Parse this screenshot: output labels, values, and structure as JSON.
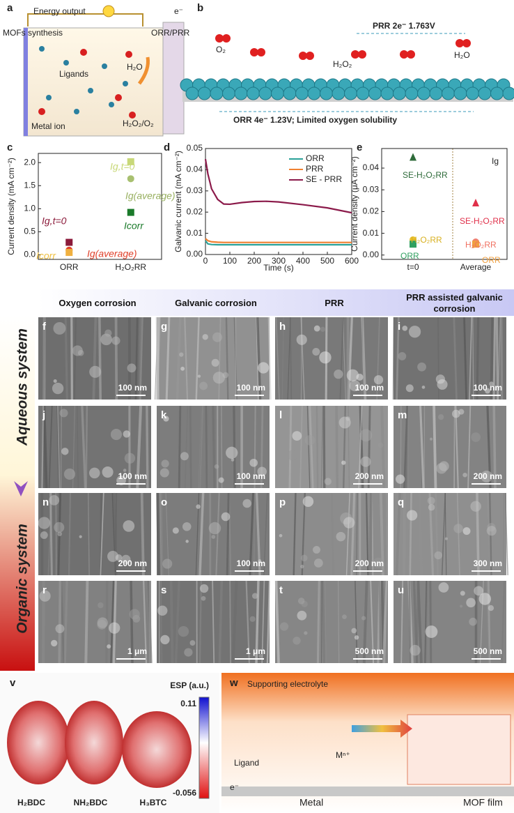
{
  "panel_a": {
    "letter": "a",
    "energy_output": "Energy output",
    "electron": "e⁻",
    "mofs_synthesis": "MOFs synthesis",
    "orr_prr": "ORR/PRR",
    "ligands": "Ligands",
    "water": "H₂O",
    "metal_ion": "Metal ion",
    "products": "H₂O₂/O₂"
  },
  "panel_b": {
    "letter": "b",
    "prr": "PRR  2e⁻ 1.763V",
    "o2": "O₂",
    "h2o2": "H₂O₂",
    "h2o": "H₂O",
    "orr": "ORR  4e⁻ 1.23V; Limited oxygen solubility"
  },
  "chart_data": [
    {
      "type": "scatter",
      "label": "c",
      "ylabel": "Current density (mA cm⁻²)",
      "categories": [
        "ORR",
        "H₂O₂RR"
      ],
      "ylim": [
        -0.1,
        2.2
      ],
      "yticks": [
        {
          "value": 0,
          "label": "0.0"
        },
        0.5,
        {
          "value": 1,
          "label": "1.0"
        },
        1.5,
        {
          "value": 2,
          "label": "2.0"
        }
      ],
      "series": [
        {
          "marker": "square",
          "colors": [
            "#8b1a3a",
            "#c8d878"
          ],
          "values": [
            0.27,
            2.02
          ]
        },
        {
          "marker": "circle",
          "colors": [
            "#e0402a",
            "#a8c070"
          ],
          "values": [
            0.1,
            1.65
          ]
        },
        {
          "marker": "square",
          "colors": [
            "#f0b040",
            "#1a7a2a"
          ],
          "values": [
            0.05,
            0.92
          ]
        }
      ],
      "annotations": [
        {
          "text": "Ig,t=0",
          "color": "#8b1a3a"
        },
        {
          "text": "Ig(average)",
          "color": "#e0402a"
        },
        {
          "text": "Icorr",
          "color": "#f0c040"
        },
        {
          "text": "Ig,t=0",
          "color": "#c8d878"
        },
        {
          "text": "Ig(average)",
          "color": "#98b060"
        },
        {
          "text": "Icorr",
          "color": "#1a7a2a"
        }
      ]
    },
    {
      "type": "line",
      "label": "d",
      "ylabel": "Galvanic current (mA cm⁻²)",
      "xlabel": "Time (s)",
      "xlim": [
        0,
        600
      ],
      "xticks": [
        0,
        100,
        200,
        300,
        400,
        500,
        600
      ],
      "ylim": [
        0,
        0.05
      ],
      "yticks": [
        {
          "value": 0,
          "label": "0.00"
        },
        0.01,
        0.02,
        0.03,
        0.04,
        0.05
      ],
      "x": [
        0,
        10,
        25,
        50,
        75,
        100,
        150,
        200,
        250,
        300,
        400,
        500,
        600
      ],
      "series": [
        {
          "name": "ORR",
          "color": "#2aa198",
          "values": [
            0.0065,
            0.005,
            0.0047,
            0.0046,
            0.0046,
            0.0046,
            0.0046,
            0.0046,
            0.0046,
            0.0046,
            0.0046,
            0.0046,
            0.0046
          ]
        },
        {
          "name": "PRR",
          "color": "#f08030",
          "values": [
            0.0075,
            0.0065,
            0.006,
            0.0058,
            0.0057,
            0.0057,
            0.0057,
            0.0057,
            0.0057,
            0.0057,
            0.0057,
            0.0057,
            0.0057
          ]
        },
        {
          "name": "SE - PRR",
          "color": "#8b1a4a",
          "values": [
            0.045,
            0.038,
            0.031,
            0.026,
            0.0238,
            0.0237,
            0.0245,
            0.025,
            0.0251,
            0.0248,
            0.0235,
            0.022,
            0.0197
          ]
        }
      ]
    },
    {
      "type": "scatter",
      "label": "e",
      "ylabel": "Current density (μA cm⁻²)",
      "categories": [
        "t=0",
        "Average"
      ],
      "ylim": [
        -0.002,
        0.049
      ],
      "yticks": [
        {
          "value": 0,
          "label": "0.00"
        },
        0.01,
        0.02,
        0.03,
        0.04
      ],
      "series": [
        {
          "marker": "triangle",
          "colors": [
            "#2e6b3a",
            "#e0304a"
          ],
          "values": [
            0.045,
            0.024
          ]
        },
        {
          "marker": "circle",
          "colors": [
            "#e8c030",
            "#f08070"
          ],
          "values": [
            0.007,
            0.006
          ]
        },
        {
          "marker": "square",
          "colors": [
            "#30a060",
            "#f0a040"
          ],
          "values": [
            0.005,
            0.005
          ]
        }
      ],
      "annotations": [
        {
          "text": "SE-H₂O₂RR",
          "color": "#2e6b3a"
        },
        {
          "text": "H₂O₂RR",
          "color": "#d8b020"
        },
        {
          "text": "ORR",
          "color": "#30a060"
        },
        {
          "text": "SE-H₂O₂RR",
          "color": "#e0304a"
        },
        {
          "text": "H₂O₂RR",
          "color": "#f07060"
        },
        {
          "text": "ORR",
          "color": "#f0a040"
        },
        {
          "text": "Ig",
          "color": "#222"
        }
      ]
    }
  ],
  "columns": [
    "Oxygen corrosion",
    "Galvanic corrosion",
    "PRR",
    "PRR assisted galvanic corrosion"
  ],
  "systems": [
    "Aqueous system",
    "Organic system"
  ],
  "sem_images": [
    {
      "letter": "f",
      "scale": "100 nm"
    },
    {
      "letter": "g",
      "scale": "100 nm"
    },
    {
      "letter": "h",
      "scale": "100 nm"
    },
    {
      "letter": "i",
      "scale": "100 nm"
    },
    {
      "letter": "j",
      "scale": "100 nm"
    },
    {
      "letter": "k",
      "scale": "100 nm"
    },
    {
      "letter": "l",
      "scale": "200 nm"
    },
    {
      "letter": "m",
      "scale": "200 nm"
    },
    {
      "letter": "n",
      "scale": "200 nm"
    },
    {
      "letter": "o",
      "scale": "100 nm"
    },
    {
      "letter": "p",
      "scale": "200 nm"
    },
    {
      "letter": "q",
      "scale": "300 nm"
    },
    {
      "letter": "r",
      "scale": "1 μm"
    },
    {
      "letter": "s",
      "scale": "1 μm"
    },
    {
      "letter": "t",
      "scale": "500 nm"
    },
    {
      "letter": "u",
      "scale": "500 nm"
    }
  ],
  "panel_v": {
    "letter": "v",
    "colorbar_title": "ESP (a.u.)",
    "colorbar_max": "0.11",
    "colorbar_min": "-0.056",
    "molecules": [
      "H₂BDC",
      "NH₂BDC",
      "H₃BTC"
    ]
  },
  "panel_w": {
    "letter": "w",
    "electrolyte": "Supporting electrolyte",
    "ligand": "Ligand",
    "metal_cation": "Mⁿ⁺",
    "electron": "e⁻",
    "metal": "Metal",
    "film": "MOF film"
  }
}
